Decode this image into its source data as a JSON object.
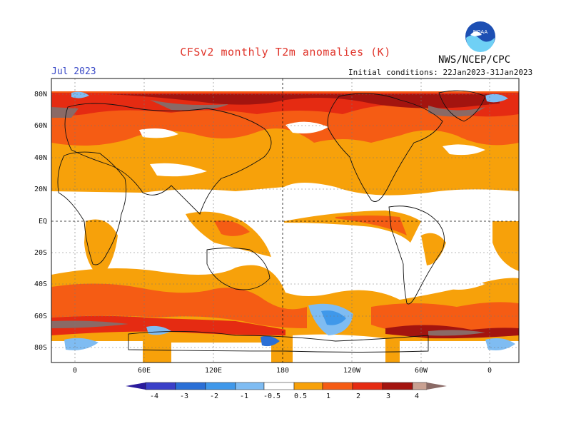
{
  "header": {
    "title": "CFSv2 monthly T2m anomalies (K)",
    "agency": "NWS/NCEP/CPC",
    "month": "Jul 2023",
    "initial_conditions": "Initial conditions: 22Jan2023-31Jan2023",
    "logo_text": "NOAA"
  },
  "map": {
    "lat_labels": [
      "80N",
      "60N",
      "40N",
      "20N",
      "EQ",
      "20S",
      "40S",
      "60S",
      "80S"
    ],
    "lon_labels": [
      "0",
      "60E",
      "120E",
      "180",
      "120W",
      "60W",
      "0"
    ]
  },
  "colorbar": {
    "labels": [
      "-4",
      "-3",
      "-2",
      "-1",
      "-0.5",
      "0.5",
      "1",
      "2",
      "3",
      "4"
    ],
    "colors": [
      "#2a1a9c",
      "#3a3fc8",
      "#2a6fd6",
      "#3f98ea",
      "#7fbcf2",
      "#ffffff",
      "#f7a10a",
      "#f55c14",
      "#e52b12",
      "#a3140f",
      "#c9a192",
      "#8a6a66"
    ]
  }
}
